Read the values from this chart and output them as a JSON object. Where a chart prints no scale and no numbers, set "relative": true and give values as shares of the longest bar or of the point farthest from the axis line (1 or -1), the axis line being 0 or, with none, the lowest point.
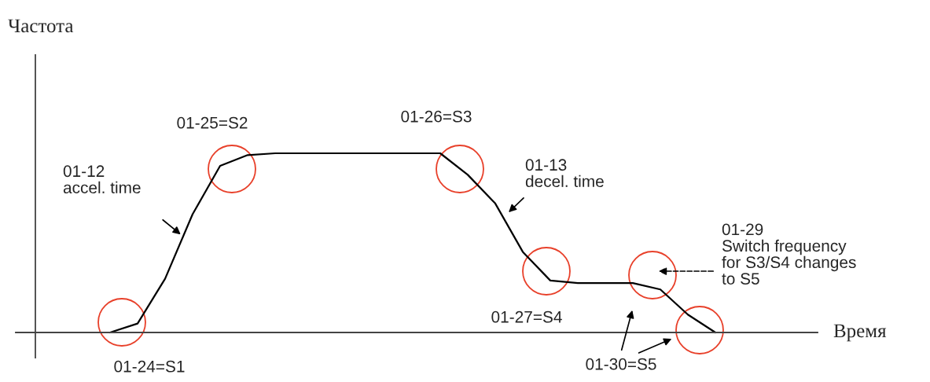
{
  "chart_data": {
    "type": "line",
    "relative": true,
    "legend": false,
    "marker": "none",
    "line_style": "solid",
    "categories": [
      null,
      null,
      null,
      null,
      null,
      null,
      null,
      null,
      null,
      null,
      null,
      null,
      null,
      null,
      null,
      null,
      null,
      null,
      null,
      null,
      null,
      null,
      null
    ],
    "series": [
      {
        "color": "#000000",
        "values": [
          0,
          0.05,
          0.3,
          0.66,
          0.93,
          0.99,
          1,
          1,
          1,
          1,
          1,
          1,
          1,
          0.88,
          0.72,
          0.45,
          0.29,
          0.276,
          0.276,
          0.276,
          0.24,
          0.1,
          0
        ]
      }
    ],
    "annotations": [
      "Частота",
      "Время",
      "01-24=S1",
      "01-25=S2",
      "01-26=S3",
      "01-27=S4",
      "01-12\naccel. time",
      "01-13\ndecel. time",
      "01-29\nSwitch frequency\nfor S3/S4 changes\nto S5",
      "01-30=S5"
    ]
  }
}
